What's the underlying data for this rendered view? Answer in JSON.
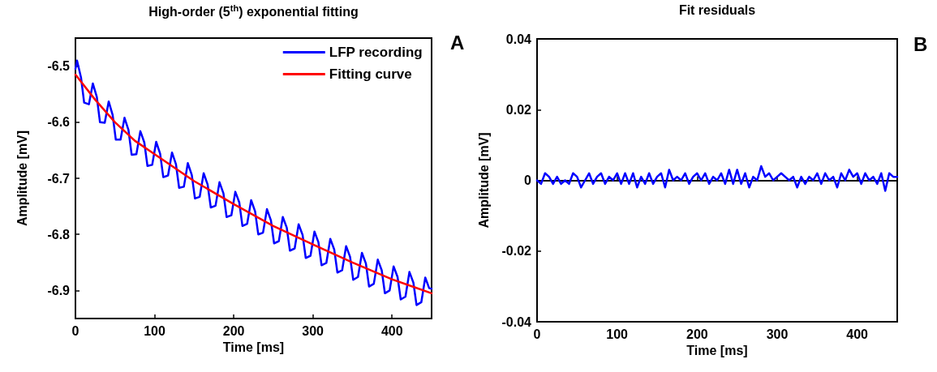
{
  "chart_data": [
    {
      "type": "line",
      "title": "High-order (5$^{th}$) exponential fitting",
      "xlabel": "Time [ms]",
      "ylabel": "Amplitude [mV]",
      "annotations": [
        "A"
      ],
      "legend": "top right",
      "marker": "none",
      "xlim": [
        0,
        450
      ],
      "xticks": [
        0,
        100,
        200,
        300,
        400
      ],
      "ylim": [
        -6.95,
        -6.45
      ],
      "yticks": [
        -6.9,
        -6.8,
        -6.7,
        -6.6,
        -6.5
      ],
      "series": [
        {
          "name": "LFP recording",
          "color": "#0000ff",
          "x": [
            0,
            2,
            7,
            11,
            17,
            22,
            27,
            31,
            37,
            42,
            47,
            51,
            57,
            62,
            67,
            71,
            77,
            82,
            87,
            91,
            97,
            102,
            107,
            111,
            117,
            122,
            127,
            131,
            137,
            142,
            147,
            151,
            157,
            162,
            167,
            171,
            177,
            182,
            187,
            191,
            197,
            202,
            207,
            211,
            217,
            222,
            227,
            231,
            237,
            242,
            247,
            251,
            257,
            262,
            267,
            271,
            277,
            282,
            287,
            291,
            297,
            302,
            307,
            311,
            317,
            322,
            327,
            331,
            337,
            342,
            347,
            351,
            357,
            362,
            367,
            371,
            377,
            382,
            387,
            391,
            397,
            402,
            407,
            411,
            417,
            422,
            427,
            431,
            437,
            442,
            447,
            450
          ],
          "values": [
            -6.505,
            -6.49,
            -6.52,
            -6.565,
            -6.568,
            -6.531,
            -6.555,
            -6.6,
            -6.601,
            -6.563,
            -6.587,
            -6.631,
            -6.631,
            -6.592,
            -6.614,
            -6.658,
            -6.657,
            -6.616,
            -6.636,
            -6.678,
            -6.676,
            -6.635,
            -6.656,
            -6.698,
            -6.695,
            -6.654,
            -6.675,
            -6.717,
            -6.715,
            -6.673,
            -6.694,
            -6.736,
            -6.733,
            -6.691,
            -6.711,
            -6.752,
            -6.749,
            -6.707,
            -6.727,
            -6.769,
            -6.766,
            -6.724,
            -6.743,
            -6.785,
            -6.781,
            -6.739,
            -6.759,
            -6.8,
            -6.797,
            -6.755,
            -6.775,
            -6.816,
            -6.812,
            -6.769,
            -6.788,
            -6.829,
            -6.825,
            -6.782,
            -6.801,
            -6.842,
            -6.838,
            -6.795,
            -6.814,
            -6.855,
            -6.851,
            -6.808,
            -6.827,
            -6.868,
            -6.864,
            -6.821,
            -6.84,
            -6.881,
            -6.876,
            -6.833,
            -6.852,
            -6.893,
            -6.888,
            -6.845,
            -6.864,
            -6.905,
            -6.9,
            -6.857,
            -6.876,
            -6.916,
            -6.911,
            -6.867,
            -6.886,
            -6.926,
            -6.921,
            -6.877,
            -6.896,
            -6.897
          ]
        },
        {
          "name": "Fitting curve",
          "color": "#ff0000",
          "x": [
            0,
            25,
            50,
            75,
            100,
            150,
            200,
            250,
            300,
            350,
            400,
            450
          ],
          "values": [
            -6.515,
            -6.56,
            -6.6,
            -6.633,
            -6.657,
            -6.705,
            -6.746,
            -6.785,
            -6.818,
            -6.85,
            -6.88,
            -6.905
          ]
        }
      ]
    },
    {
      "type": "line",
      "title": "Fit residuals",
      "xlabel": "Time [ms]",
      "ylabel": "Amplitude [mV]",
      "annotations": [
        "B"
      ],
      "marker": "none",
      "xlim": [
        0,
        450
      ],
      "xticks": [
        0,
        100,
        200,
        300,
        400
      ],
      "ylim": [
        -0.04,
        0.04
      ],
      "yticks": [
        -0.04,
        -0.02,
        0,
        0.02,
        0.04
      ],
      "series": [
        {
          "color": "#0000ff",
          "x": [
            0,
            5,
            10,
            15,
            20,
            25,
            30,
            35,
            40,
            45,
            50,
            55,
            60,
            65,
            70,
            75,
            80,
            85,
            90,
            95,
            100,
            105,
            110,
            115,
            120,
            125,
            130,
            135,
            140,
            145,
            150,
            155,
            160,
            165,
            170,
            175,
            180,
            185,
            190,
            195,
            200,
            205,
            210,
            215,
            220,
            225,
            230,
            235,
            240,
            245,
            250,
            255,
            260,
            265,
            270,
            275,
            280,
            285,
            290,
            295,
            300,
            305,
            310,
            315,
            320,
            325,
            330,
            335,
            340,
            345,
            350,
            355,
            360,
            365,
            370,
            375,
            380,
            385,
            390,
            395,
            400,
            405,
            410,
            415,
            420,
            425,
            430,
            435,
            440,
            445,
            450
          ],
          "values": [
            0.0,
            -0.001,
            0.002,
            0.001,
            -0.001,
            0.001,
            -0.001,
            0.0,
            -0.001,
            0.002,
            0.001,
            -0.002,
            0.0,
            0.002,
            -0.001,
            0.001,
            0.002,
            -0.001,
            0.001,
            0.0,
            0.002,
            -0.001,
            0.002,
            -0.001,
            0.002,
            -0.002,
            0.001,
            -0.001,
            0.002,
            -0.001,
            0.001,
            0.002,
            -0.002,
            0.003,
            0.0,
            0.001,
            0.0,
            0.002,
            -0.001,
            0.001,
            0.002,
            0.0,
            0.002,
            -0.001,
            0.001,
            0.0,
            0.002,
            -0.001,
            0.003,
            -0.001,
            0.003,
            -0.001,
            0.002,
            -0.002,
            0.001,
            0.0,
            0.004,
            0.001,
            0.002,
            0.0,
            0.001,
            0.002,
            0.001,
            0.0,
            0.001,
            -0.002,
            0.001,
            -0.001,
            0.001,
            0.0,
            0.002,
            -0.001,
            0.002,
            0.0,
            0.001,
            -0.002,
            0.002,
            0.0,
            0.003,
            0.001,
            0.002,
            -0.001,
            0.002,
            0.0,
            0.001,
            -0.001,
            0.002,
            -0.003,
            0.002,
            0.001,
            0.001
          ]
        }
      ]
    }
  ]
}
